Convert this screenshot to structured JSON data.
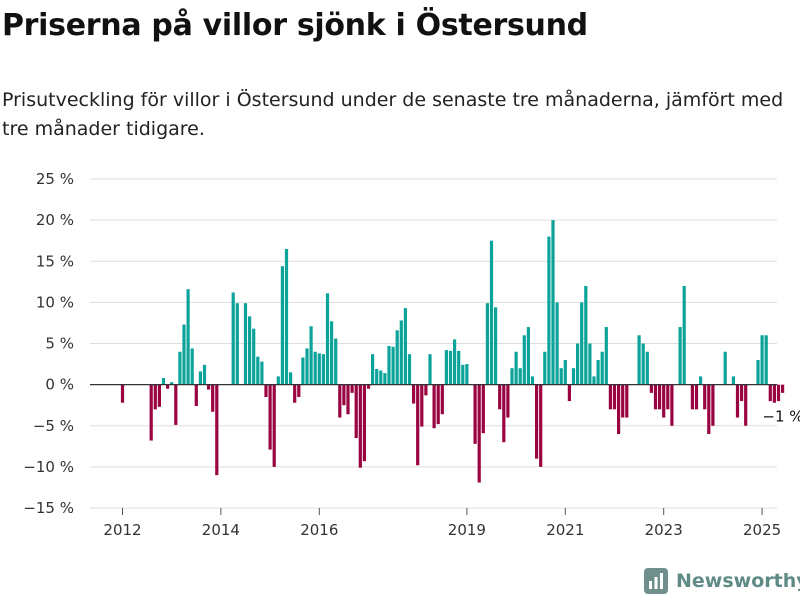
{
  "title": "Priserna på villor sjönk i Östersund",
  "subtitle": "Prisutveckling för villor i Östersund under de senaste tre månaderna, jämfört med tre månader tidigare.",
  "brand": {
    "name": "Newsworthy",
    "color": "#5f8a86"
  },
  "colors": {
    "positive": "#0ca39a",
    "negative": "#990341",
    "grid": "#dddddd",
    "zero": "#333333"
  },
  "chart_data": {
    "type": "bar",
    "ylim": [
      -15,
      25
    ],
    "y_ticks": [
      -15,
      -10,
      -5,
      0,
      5,
      10,
      15,
      20,
      25
    ],
    "y_tick_labels": [
      "−15 %",
      "−10 %",
      "−5 %",
      "0 %",
      "5 %",
      "10 %",
      "15 %",
      "20 %",
      "25 %"
    ],
    "x_ticks": [
      "2012",
      "2014",
      "2016",
      "2019",
      "2021",
      "2023",
      "2025"
    ],
    "x_tick_months": [
      "2012-01",
      "2014-01",
      "2016-01",
      "2019-01",
      "2021-01",
      "2023-01",
      "2025-01"
    ],
    "start_month": "2012-01",
    "annotation": {
      "text": "−1 %",
      "month": "2025-01"
    },
    "grid": true,
    "values": [
      -2.2,
      0,
      0,
      0,
      0,
      0,
      0,
      -6.8,
      -3,
      -2.7,
      0.8,
      -0.5,
      0.3,
      -4.9,
      4,
      7.3,
      11.6,
      4.4,
      -2.6,
      1.6,
      2.4,
      -0.6,
      -3.3,
      -11,
      0,
      0,
      0,
      11.2,
      9.9,
      0,
      9.9,
      8.3,
      6.8,
      3.4,
      2.8,
      -1.5,
      -7.9,
      -10,
      1,
      14.4,
      16.5,
      1.5,
      -2.2,
      -1.5,
      3.3,
      4.4,
      7.1,
      4,
      3.8,
      3.7,
      11.1,
      7.7,
      5.6,
      -4,
      -2.5,
      -3.6,
      -1,
      -6.5,
      -10.1,
      -9.3,
      -0.5,
      3.7,
      1.9,
      1.7,
      1.4,
      4.7,
      4.6,
      6.6,
      7.8,
      9.3,
      3.7,
      -2.3,
      -9.8,
      -5.1,
      -1.3,
      3.7,
      -5.3,
      -4.8,
      -3.6,
      4.2,
      4.1,
      5.5,
      4.1,
      2.4,
      2.5,
      0,
      -7.2,
      -11.9,
      -5.9,
      9.9,
      17.5,
      9.4,
      -3,
      -7,
      -4,
      2,
      4,
      2,
      6,
      7,
      1,
      -9,
      -10,
      4,
      18,
      20,
      10,
      2,
      3,
      -2,
      2,
      5,
      10,
      12,
      5,
      1,
      3,
      4,
      7,
      -3,
      -3,
      -6,
      -4,
      -4,
      0,
      0,
      6,
      5,
      4,
      -1,
      -3,
      -3,
      -4,
      -3,
      -5,
      0,
      7,
      12,
      0,
      -3,
      -3,
      1,
      -3,
      -6,
      -5,
      0,
      0,
      4,
      0,
      1,
      -4,
      -2,
      -5,
      0,
      0,
      3,
      6,
      6,
      -2,
      -2.2,
      -2,
      -1
    ]
  }
}
